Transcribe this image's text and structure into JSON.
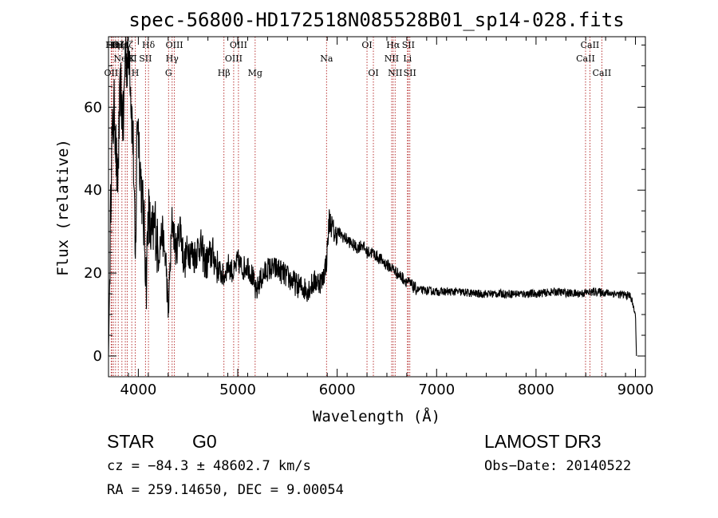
{
  "chart_data": {
    "type": "line",
    "title": "spec-56800-HD172518N085528B01_sp14-028.fits",
    "xlabel": "Wavelength (Å)",
    "ylabel": "Flux (relative)",
    "xlim": [
      3700,
      9100
    ],
    "ylim": [
      -5,
      77
    ],
    "xticks": [
      4000,
      5000,
      6000,
      7000,
      8000,
      9000
    ],
    "yticks": [
      0,
      20,
      40,
      60
    ],
    "series": [
      {
        "name": "flux",
        "x": [
          3700,
          3710,
          3730,
          3760,
          3790,
          3820,
          3850,
          3870,
          3890,
          3910,
          3930,
          3950,
          3970,
          3990,
          4020,
          4060,
          4080,
          4100,
          4130,
          4170,
          4200,
          4240,
          4280,
          4300,
          4340,
          4380,
          4420,
          4460,
          4500,
          4560,
          4620,
          4680,
          4740,
          4800,
          4861,
          4900,
          4960,
          5000,
          5050,
          5100,
          5150,
          5183,
          5220,
          5300,
          5400,
          5500,
          5600,
          5700,
          5780,
          5850,
          5893,
          5920,
          5950,
          5980,
          6000,
          6050,
          6100,
          6150,
          6200,
          6250,
          6300,
          6350,
          6400,
          6450,
          6500,
          6563,
          6600,
          6650,
          6700,
          6750,
          6800,
          7000,
          7200,
          7400,
          7600,
          7800,
          8000,
          8200,
          8400,
          8600,
          8800,
          8950,
          9000,
          9010
        ],
        "y": [
          0,
          15,
          50,
          60,
          40,
          65,
          55,
          75,
          70,
          75,
          60,
          50,
          20,
          60,
          45,
          30,
          18,
          35,
          28,
          32,
          24,
          30,
          22,
          10,
          33,
          25,
          32,
          22,
          26,
          24,
          27,
          22,
          25,
          21,
          19,
          22,
          20,
          23,
          21,
          22,
          19,
          15,
          18,
          21,
          21,
          19,
          17,
          16,
          18,
          18,
          23,
          33,
          31,
          29,
          30,
          29,
          28,
          27,
          26,
          27,
          25,
          25,
          24,
          23,
          22,
          21,
          20,
          19,
          18,
          17,
          16,
          15.5,
          15.5,
          15,
          15,
          15,
          15,
          15.5,
          15,
          15.5,
          15,
          14.5,
          10,
          0
        ]
      }
    ],
    "lines": [
      {
        "x": 3727,
        "label": "OII",
        "row": 3
      },
      {
        "x": 3734,
        "label": "Hθ",
        "row": 1
      },
      {
        "x": 3750,
        "label": "Hη",
        "row": 1
      },
      {
        "x": 3771,
        "label": "Hι",
        "row": 1
      },
      {
        "x": 3798,
        "label": "Hζ",
        "row": 1
      },
      {
        "x": 3835,
        "label": "Hε",
        "row": 1
      },
      {
        "x": 3869,
        "label": "NeIII",
        "row": 2
      },
      {
        "x": 3889,
        "label": "Hζ",
        "row": 1
      },
      {
        "x": 3934,
        "label": "K",
        "row": 2
      },
      {
        "x": 3969,
        "label": "H",
        "row": 3
      },
      {
        "x": 4072,
        "label": "SII",
        "row": 2
      },
      {
        "x": 4102,
        "label": "Hδ",
        "row": 1
      },
      {
        "x": 4304,
        "label": "G",
        "row": 3
      },
      {
        "x": 4340,
        "label": "Hγ",
        "row": 2
      },
      {
        "x": 4363,
        "label": "OIII",
        "row": 1
      },
      {
        "x": 4861,
        "label": "Hβ",
        "row": 3
      },
      {
        "x": 4959,
        "label": "OIII",
        "row": 2
      },
      {
        "x": 5007,
        "label": "OIII",
        "row": 1
      },
      {
        "x": 5175,
        "label": "Mg",
        "row": 3
      },
      {
        "x": 5893,
        "label": "Na",
        "row": 2
      },
      {
        "x": 6300,
        "label": "OI",
        "row": 1
      },
      {
        "x": 6364,
        "label": "OI",
        "row": 3
      },
      {
        "x": 6548,
        "label": "NII",
        "row": 2
      },
      {
        "x": 6563,
        "label": "Hα",
        "row": 1
      },
      {
        "x": 6583,
        "label": "NII",
        "row": 3
      },
      {
        "x": 6707,
        "label": "Li",
        "row": 2
      },
      {
        "x": 6716,
        "label": "SII",
        "row": 1
      },
      {
        "x": 6731,
        "label": "SII",
        "row": 3
      },
      {
        "x": 8498,
        "label": "CaII",
        "row": 2
      },
      {
        "x": 8542,
        "label": "CaII",
        "row": 1
      },
      {
        "x": 8662,
        "label": "CaII",
        "row": 3
      }
    ]
  },
  "info": {
    "class": "STAR",
    "subclass": "G0",
    "cz": "cz = −84.3 ± 48602.7 km/s",
    "radec": "RA = 259.14650, DEC =   9.00054",
    "survey": "LAMOST DR3",
    "obsdate": "Obs−Date: 20140522"
  }
}
